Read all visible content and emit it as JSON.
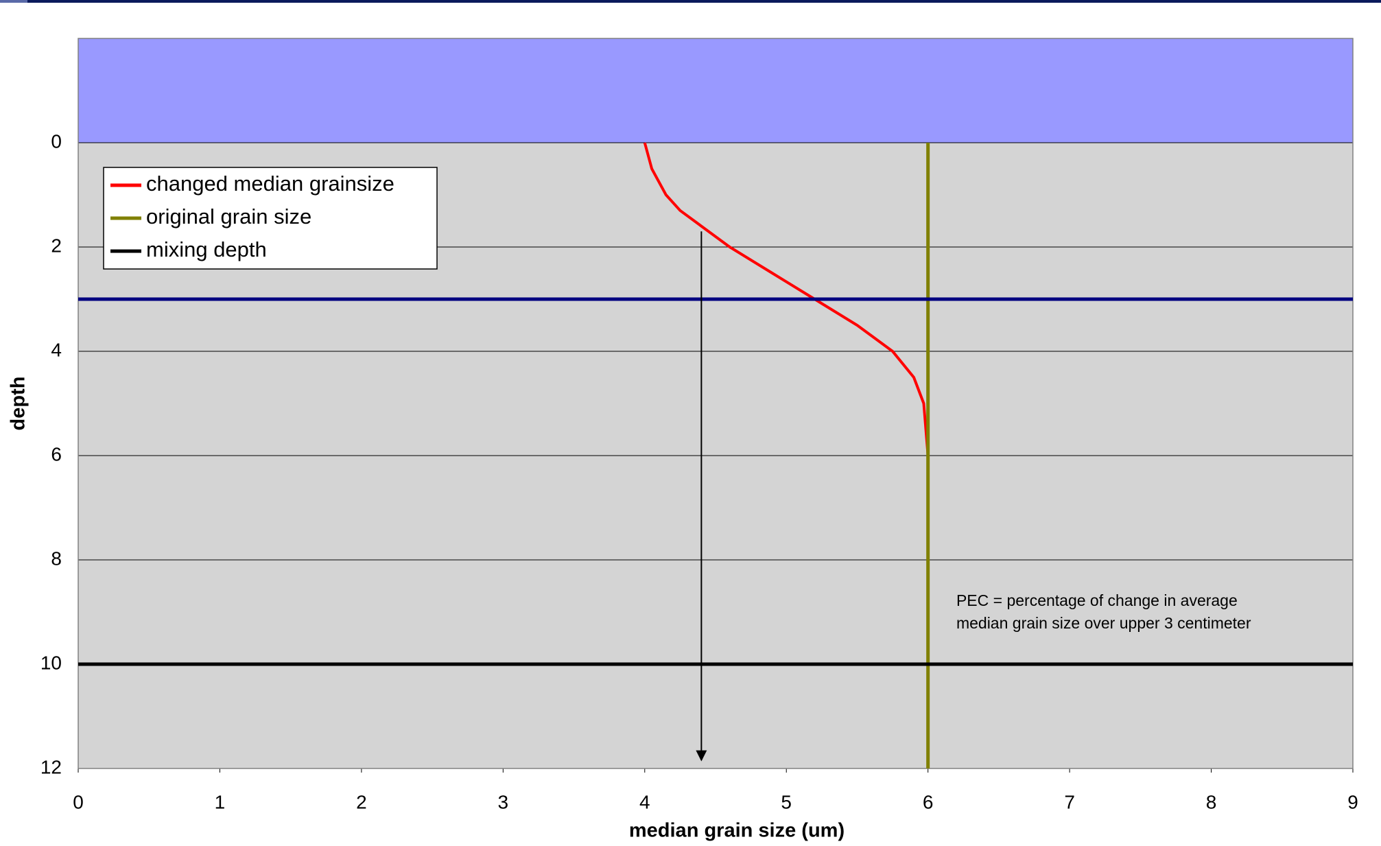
{
  "chart_data": {
    "type": "line",
    "x_label": "median grain size (um)",
    "y_label": "depth",
    "xlim": [
      0,
      9
    ],
    "xticks": [
      0,
      1,
      2,
      3,
      4,
      5,
      6,
      7,
      8,
      9
    ],
    "ylim": [
      -2,
      12
    ],
    "yticks": [
      0,
      2,
      4,
      6,
      8,
      10,
      12
    ],
    "y_inverted": true,
    "grid": true,
    "legend": "upper left",
    "shaded_region": {
      "from": -2,
      "to": 0,
      "color": "#9999ff"
    },
    "series": [
      {
        "name": "changed median grainsize",
        "color": "#ff0000",
        "x": [
          4.0,
          4.05,
          4.15,
          4.25,
          4.4,
          4.6,
          4.9,
          5.2,
          5.5,
          5.75,
          5.9,
          5.97,
          6.0,
          6.0
        ],
        "values": [
          0,
          0.5,
          1.0,
          1.3,
          1.6,
          2.0,
          2.5,
          3.0,
          3.5,
          4.0,
          4.5,
          5.0,
          6.0,
          7.0
        ]
      },
      {
        "name": "original grain size",
        "color": "#808000",
        "x": [
          6,
          6
        ],
        "values": [
          0,
          12
        ]
      },
      {
        "name": "mixing depth",
        "color": "#000000",
        "x": [
          0,
          9
        ],
        "values": [
          10,
          10
        ]
      },
      {
        "color": "#000080",
        "x": [
          0,
          9
        ],
        "values": [
          3,
          3
        ]
      }
    ],
    "arrow": {
      "x": 4.4,
      "from": 1.7,
      "to": 12
    },
    "annotation": {
      "x": 6.2,
      "y": 8.8,
      "lines": [
        "PEC = percentage of change in average",
        "median grain size over upper 3 centimeter"
      ]
    }
  }
}
